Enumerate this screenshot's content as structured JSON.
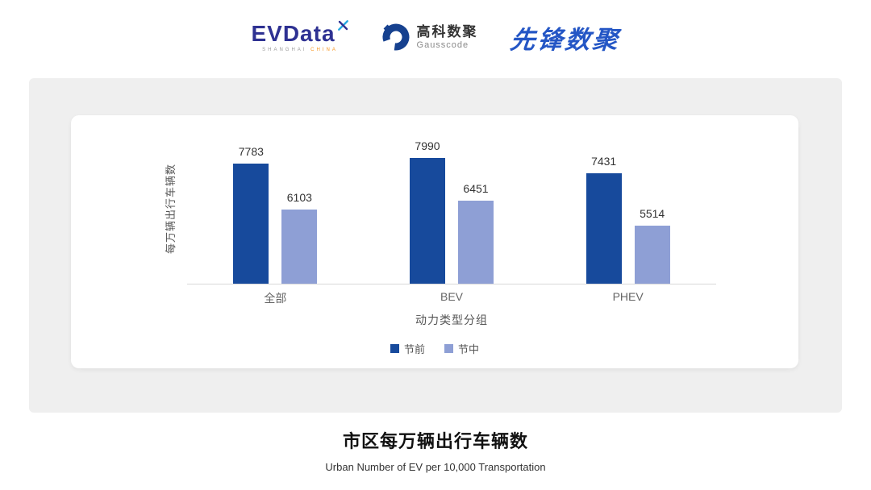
{
  "header": {
    "evdata": {
      "name": "EVData",
      "sub_gray": "SHANGHAI",
      "sub_orange": "CHINA",
      "color": "#2E3192",
      "mark_color_light": "#29ABE2",
      "sub_orange_color": "#F7941D"
    },
    "gausscode": {
      "cn": "高科数聚",
      "en": "Gausscode",
      "icon_color": "#16418F"
    },
    "pioneer": {
      "name": "先锋数聚",
      "color": "#2456C5"
    }
  },
  "chart_data": {
    "type": "bar",
    "categories": [
      "全部",
      "BEV",
      "PHEV"
    ],
    "series": [
      {
        "name": "节前",
        "color": "#174A9C",
        "values": [
          7783,
          7990,
          7431
        ]
      },
      {
        "name": "节中",
        "color": "#8E9FD5",
        "values": [
          6103,
          6451,
          5514
        ]
      }
    ],
    "title": "",
    "xlabel": "动力类型分组",
    "ylabel": "每万辆出行车辆数",
    "ylim": [
      3400,
      8800
    ],
    "grid": false,
    "legend_position": "bottom",
    "value_labels": true
  },
  "footer": {
    "title": "市区每万辆出行车辆数",
    "subtitle": "Urban Number of EV per 10,000 Transportation"
  }
}
